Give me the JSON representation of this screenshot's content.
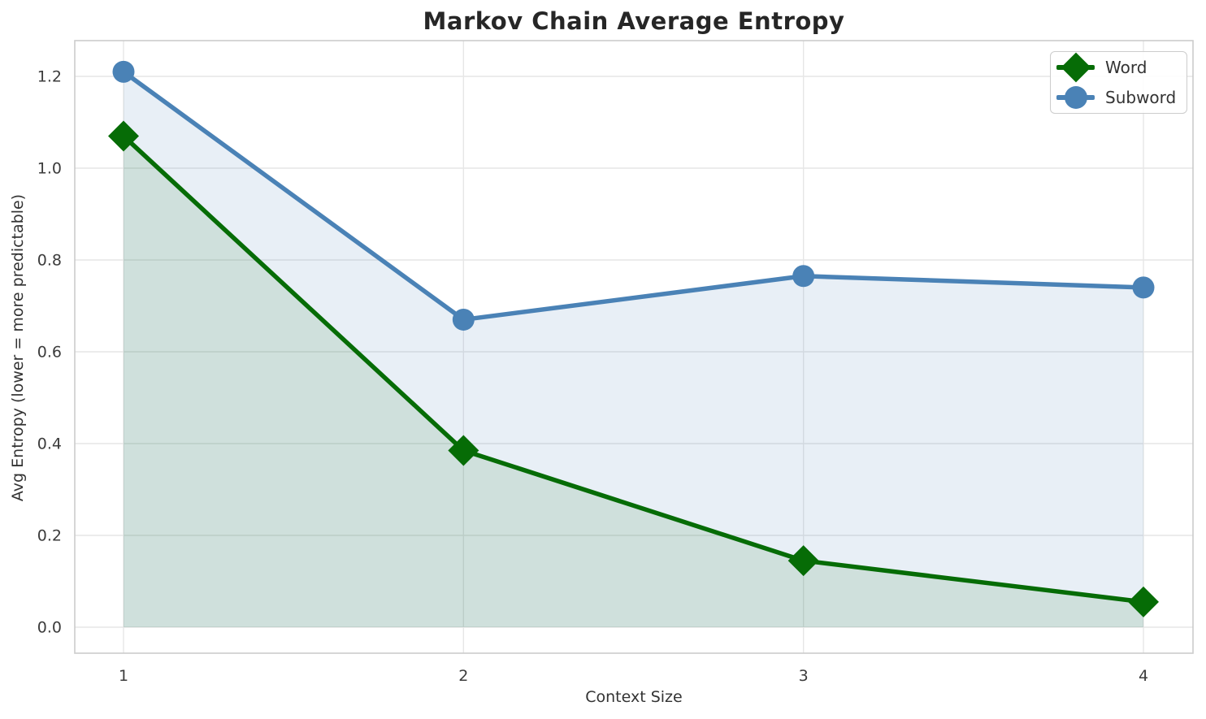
{
  "chart_data": {
    "type": "line",
    "title": "Markov Chain Average Entropy",
    "xlabel": "Context Size",
    "ylabel": "Avg Entropy (lower = more predictable)",
    "x": [
      1,
      2,
      3,
      4
    ],
    "xtick_labels": [
      "1",
      "2",
      "3",
      "4"
    ],
    "ytick_values": [
      0.0,
      0.2,
      0.4,
      0.6,
      0.8,
      1.0,
      1.2
    ],
    "ytick_labels": [
      "0.0",
      "0.2",
      "0.4",
      "0.6",
      "0.8",
      "1.0",
      "1.2"
    ],
    "xlim": [
      0.85,
      4.13
    ],
    "ylim": [
      -0.06,
      1.28
    ],
    "grid": true,
    "area_fill": true,
    "legend_position": "upper right",
    "series": [
      {
        "name": "Word",
        "marker": "diamond",
        "color": "#066c06",
        "fill_alpha": 0.11,
        "values": [
          1.07,
          0.385,
          0.145,
          0.055
        ]
      },
      {
        "name": "Subword",
        "marker": "circle",
        "color": "#4a82b6",
        "fill_alpha": 0.13,
        "values": [
          1.21,
          0.67,
          0.765,
          0.74
        ]
      }
    ],
    "style": {
      "background": "#ffffff",
      "grid_color": "#e6e6e6",
      "spine_color": "#cccccc",
      "tick_color": "#3c3c3c",
      "title_color": "#262626",
      "text_color": "#333333"
    }
  }
}
